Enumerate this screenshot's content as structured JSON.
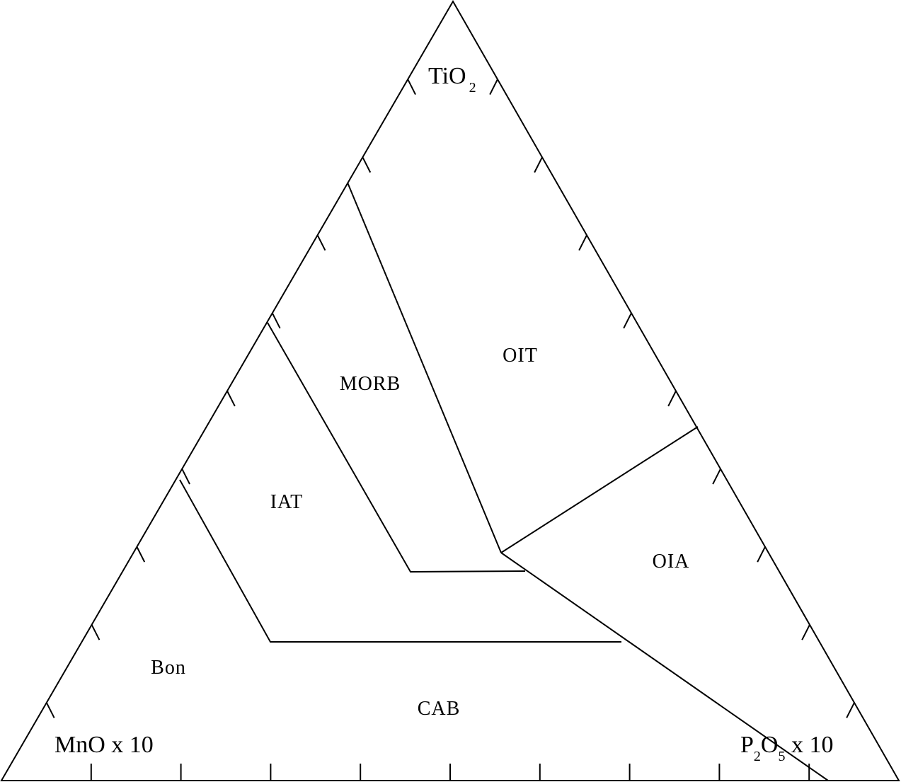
{
  "title": "",
  "apex_labels": {
    "top": {
      "main": "TiO",
      "sub": "2"
    },
    "bottom_left": {
      "main": "MnO x  10"
    },
    "bottom_right": {
      "p": "P",
      "sub1": "2",
      "o": "O",
      "sub2": "5",
      "rest": " x 10"
    }
  },
  "field_labels": {
    "oit": "OIT",
    "morb": "MORB",
    "iat": "IAT",
    "oia": "OIA",
    "bon": "Bon",
    "cab": "CAB"
  },
  "ticks_per_side": 9,
  "colors": {
    "line": "#000000",
    "background": "#ffffff"
  }
}
